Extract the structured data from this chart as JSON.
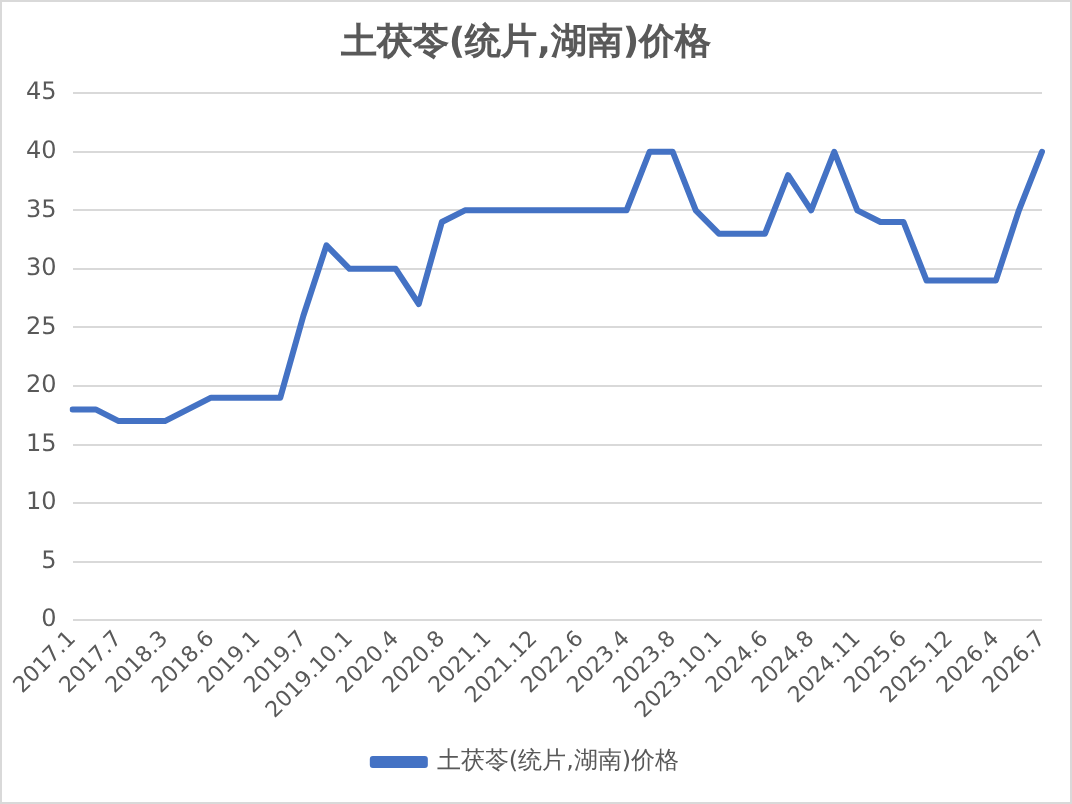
{
  "chart_data": {
    "type": "line",
    "title": "土茯苓(统片,湖南)价格",
    "categories": [
      "2017.1",
      null,
      "2017.7",
      null,
      "2018.3",
      null,
      "2018.6",
      null,
      "2019.1",
      null,
      "2019.7",
      null,
      "2019.10.1",
      null,
      "2020.4",
      null,
      "2020.8",
      null,
      "2021.1",
      null,
      "2021.12",
      null,
      "2022.6",
      null,
      "2023.4",
      null,
      "2023.8",
      null,
      "2023.10.1",
      null,
      "2024.6",
      null,
      "2024.8",
      null,
      "2024.11",
      null,
      "2025.6",
      null,
      "2025.12",
      null,
      "2026.4",
      null,
      "2026.7"
    ],
    "series": [
      {
        "name": "土茯苓(统片,湖南)价格",
        "color": "#4472c4",
        "values": [
          18,
          18,
          17,
          17,
          17,
          18,
          19,
          19,
          19,
          19,
          26,
          32,
          30,
          30,
          30,
          27,
          34,
          35,
          35,
          35,
          35,
          35,
          35,
          35,
          35,
          40,
          40,
          35,
          33,
          33,
          33,
          38,
          35,
          40,
          35,
          34,
          34,
          29,
          29,
          29,
          29,
          35,
          40
        ]
      }
    ],
    "ylim": [
      0,
      45
    ],
    "yticks": [
      0,
      5,
      10,
      15,
      20,
      25,
      30,
      35,
      40,
      45
    ],
    "grid": "y",
    "legend": "bottom",
    "marker": "none",
    "line_style": "solid"
  }
}
